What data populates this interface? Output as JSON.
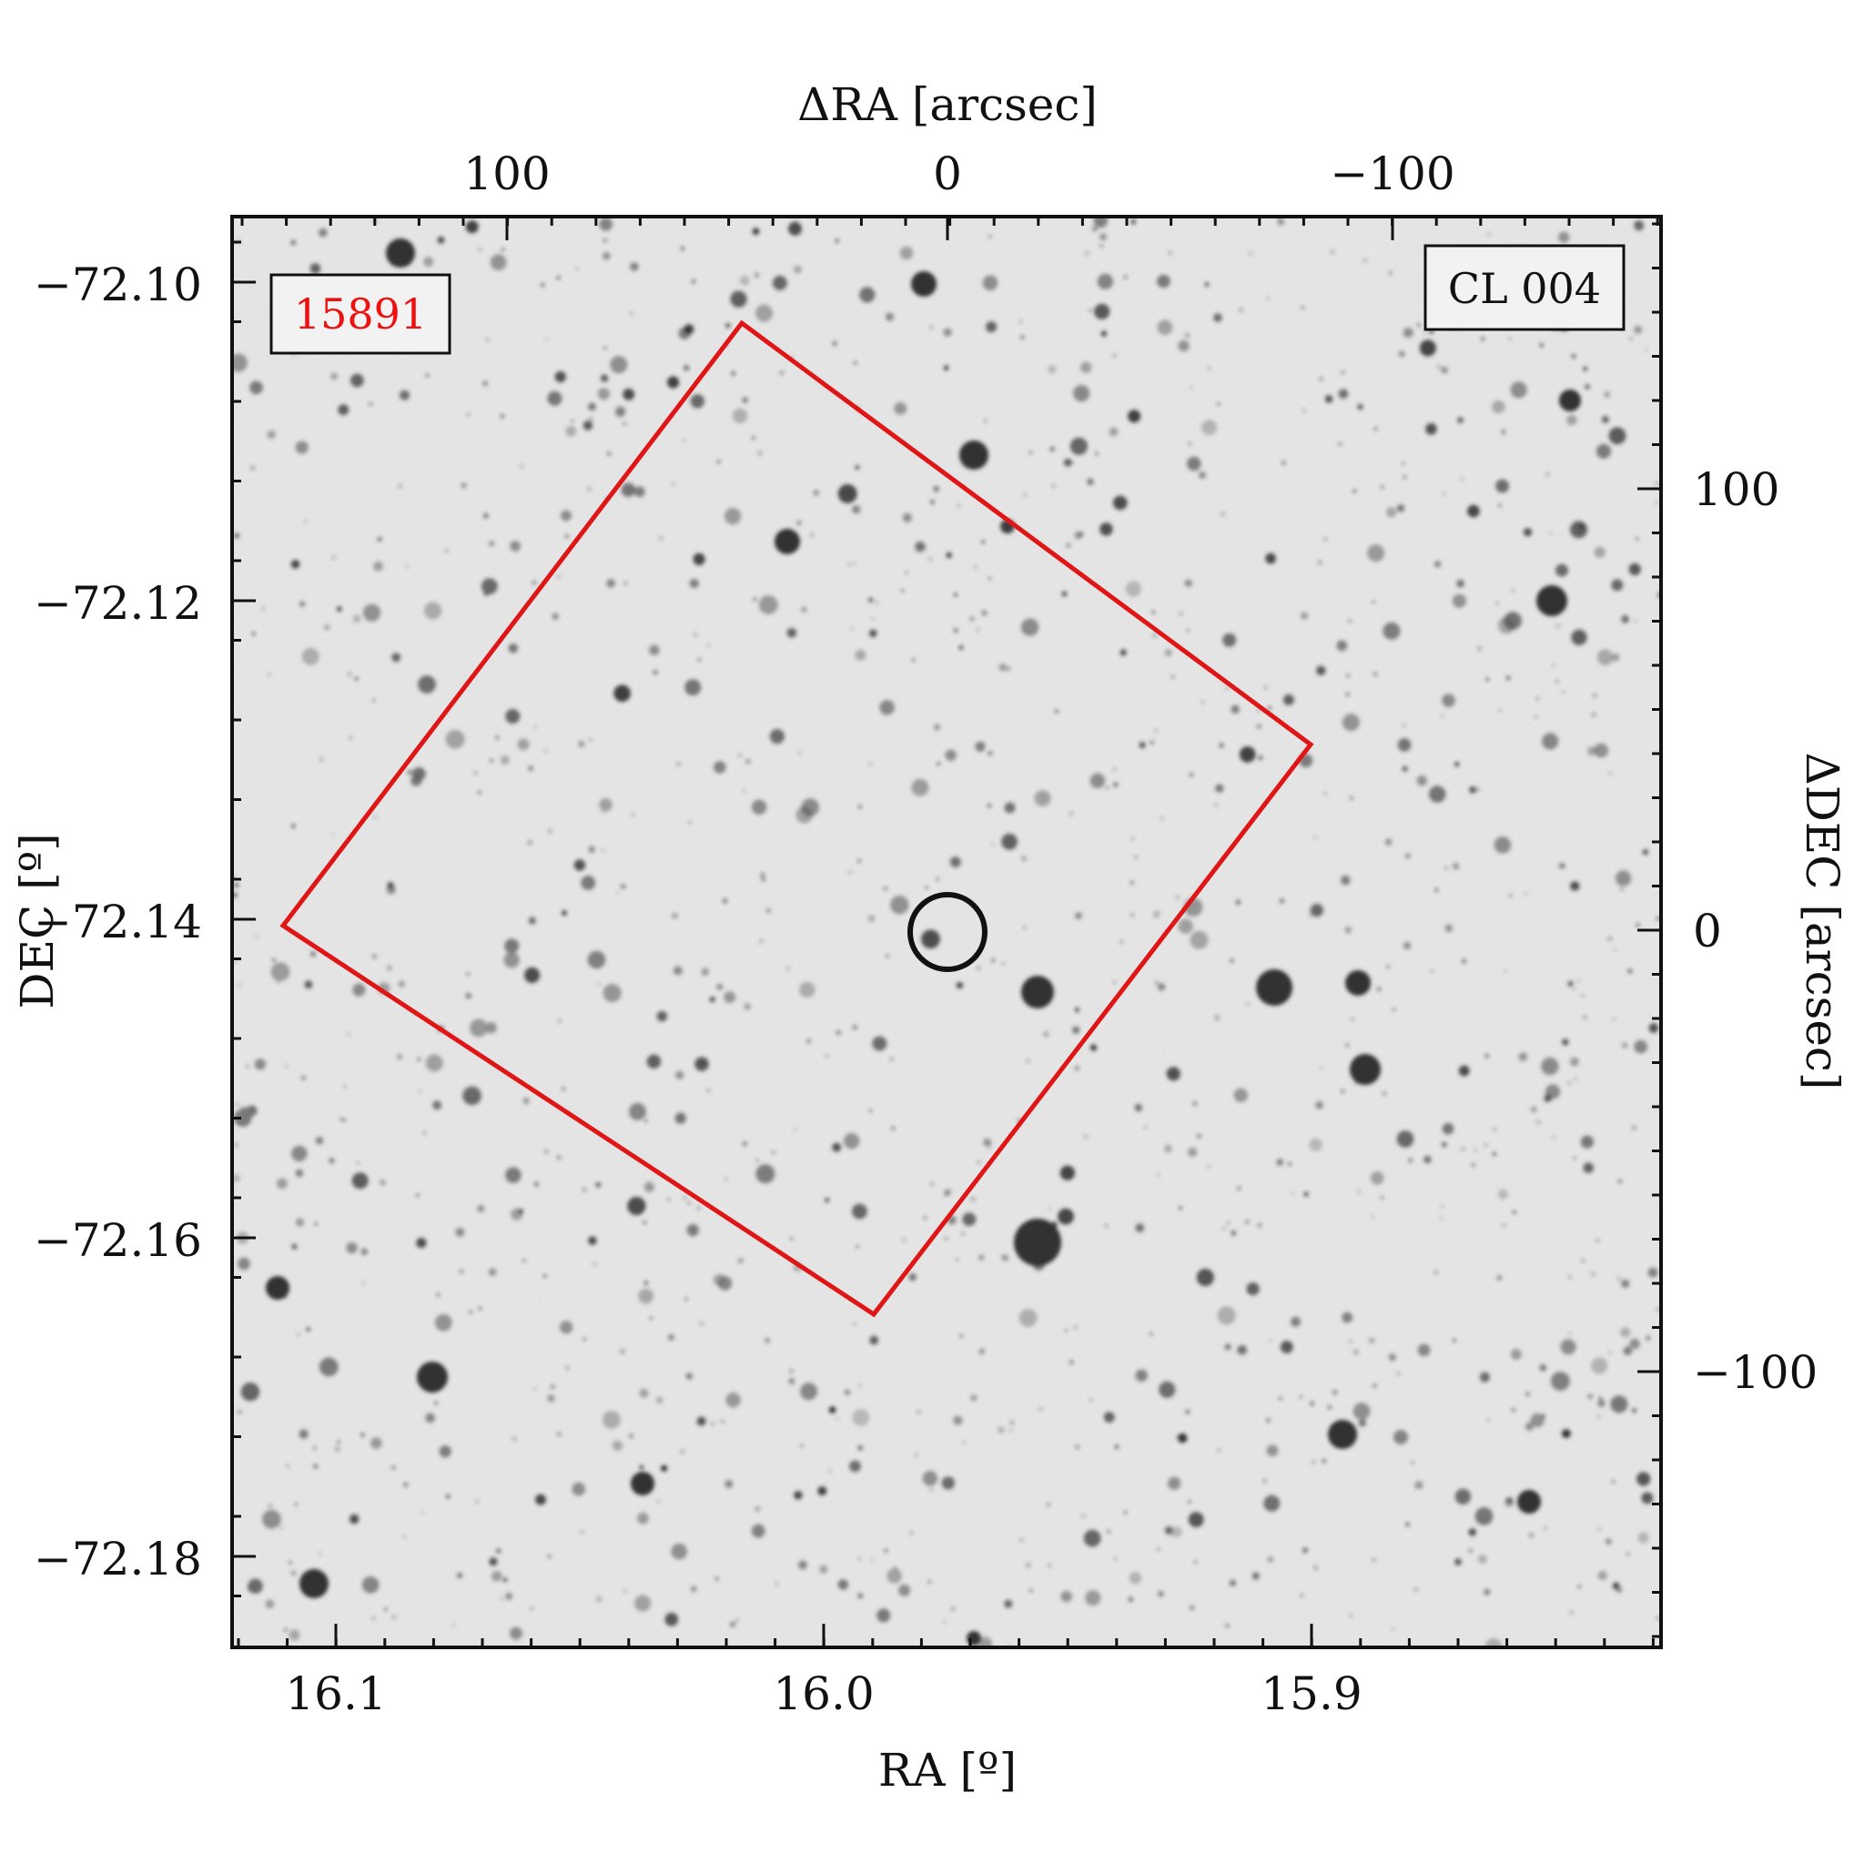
{
  "figure": {
    "top_axis": {
      "label": "ΔRA [arcsec]",
      "ticks": [
        {
          "value": 100,
          "text": "100"
        },
        {
          "value": 0,
          "text": "0"
        },
        {
          "value": -100,
          "text": "−100"
        }
      ]
    },
    "bottom_axis": {
      "label": "RA [º]",
      "ticks": [
        {
          "value": 16.1,
          "text": "16.1"
        },
        {
          "value": 16.0,
          "text": "16.0"
        },
        {
          "value": 15.9,
          "text": "15.9"
        }
      ]
    },
    "left_axis": {
      "label": "DEC [º]",
      "ticks": [
        {
          "value": -72.1,
          "text": "−72.10"
        },
        {
          "value": -72.12,
          "text": "−72.12"
        },
        {
          "value": -72.14,
          "text": "−72.14"
        },
        {
          "value": -72.16,
          "text": "−72.16"
        },
        {
          "value": -72.18,
          "text": "−72.18"
        }
      ]
    },
    "right_axis": {
      "label": "ΔDEC [arcsec]",
      "ticks": [
        {
          "value": 100,
          "text": "100"
        },
        {
          "value": 0,
          "text": "0"
        },
        {
          "value": -100,
          "text": "−100"
        }
      ]
    },
    "obs_label": {
      "text": "15891",
      "color": "#ee1111"
    },
    "cluster_label": {
      "text": "CL 004",
      "color": "#111111"
    },
    "footprint_color": "#e01515",
    "center_marker_color": "#111111",
    "image_style": "inverted grayscale star field"
  }
}
